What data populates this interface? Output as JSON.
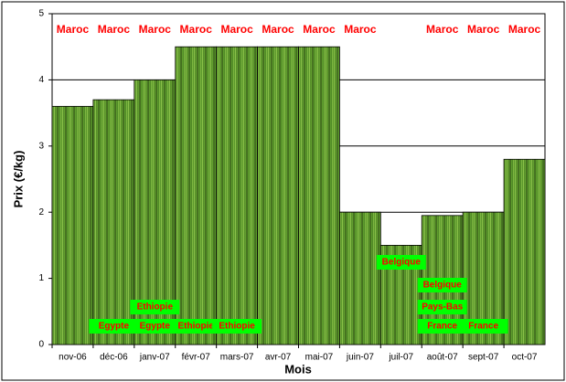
{
  "chart_data": {
    "type": "bar",
    "categories": [
      "nov-06",
      "déc-06",
      "janv-07",
      "févr-07",
      "mars-07",
      "avr-07",
      "mai-07",
      "juin-07",
      "juil-07",
      "août-07",
      "sept-07",
      "oct-07"
    ],
    "values": [
      3.6,
      3.7,
      4.0,
      4.5,
      4.5,
      4.5,
      4.5,
      2.0,
      1.5,
      1.95,
      2.0,
      2.8
    ],
    "color": "#5a9a2a",
    "xlabel": "Mois",
    "ylabel": "Prix (€/kg)",
    "ylim": [
      0,
      5
    ],
    "yticks": [
      0,
      1,
      2,
      3,
      4,
      5
    ],
    "grid": true,
    "origins": [
      [
        "Maroc"
      ],
      [
        "Maroc",
        "Egypte"
      ],
      [
        "Maroc",
        "Egypte",
        "Ethiopie"
      ],
      [
        "Maroc",
        "Ethiopie"
      ],
      [
        "Maroc",
        "Ethiopie"
      ],
      [
        "Maroc"
      ],
      [
        "Maroc"
      ],
      [
        "Maroc"
      ],
      [
        "Belgique"
      ],
      [
        "Maroc",
        "France",
        "Pays-Bas",
        "Belgique"
      ],
      [
        "Maroc",
        "France"
      ],
      [
        "Maroc"
      ]
    ]
  }
}
